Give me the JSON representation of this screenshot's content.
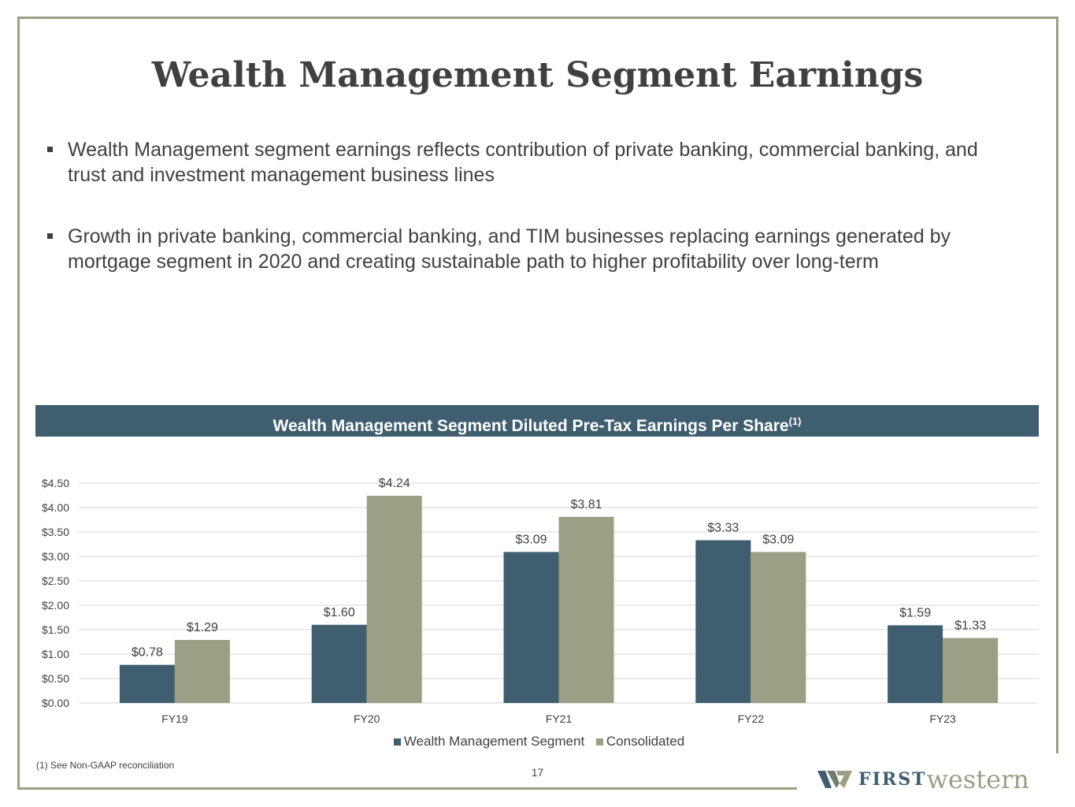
{
  "title": "Wealth Management Segment Earnings",
  "bullets": [
    "Wealth Management segment earnings reflects contribution of private banking, commercial banking, and trust and investment management business lines",
    "Growth in private banking, commercial banking, and TIM businesses replacing earnings generated by mortgage segment in 2020 and creating sustainable path to higher profitability over long-term"
  ],
  "chart_data": {
    "type": "bar",
    "title": "Wealth Management Segment Diluted Pre-Tax Earnings Per Share",
    "title_superscript": "(1)",
    "categories": [
      "FY19",
      "FY20",
      "FY21",
      "FY22",
      "FY23"
    ],
    "series": [
      {
        "name": "Wealth Management Segment",
        "values": [
          0.78,
          1.6,
          3.09,
          3.33,
          1.59
        ],
        "labels": [
          "$0.78",
          "$1.60",
          "$3.09",
          "$3.33",
          "$1.59"
        ],
        "color": "#3f5e70"
      },
      {
        "name": "Consolidated",
        "values": [
          1.29,
          4.24,
          3.81,
          3.09,
          1.33
        ],
        "labels": [
          "$1.29",
          "$4.24",
          "$3.81",
          "$3.09",
          "$1.33"
        ],
        "color": "#9b9f83"
      }
    ],
    "ylim": [
      0,
      4.5
    ],
    "yticks": [
      "$0.00",
      "$0.50",
      "$1.00",
      "$1.50",
      "$2.00",
      "$2.50",
      "$3.00",
      "$3.50",
      "$4.00",
      "$4.50"
    ],
    "grid": true,
    "legend": "bottom"
  },
  "footnote": "(1)  See Non-GAAP reconciliation",
  "page_number": "17",
  "logo": {
    "first": "FIRST",
    "western": "western"
  }
}
